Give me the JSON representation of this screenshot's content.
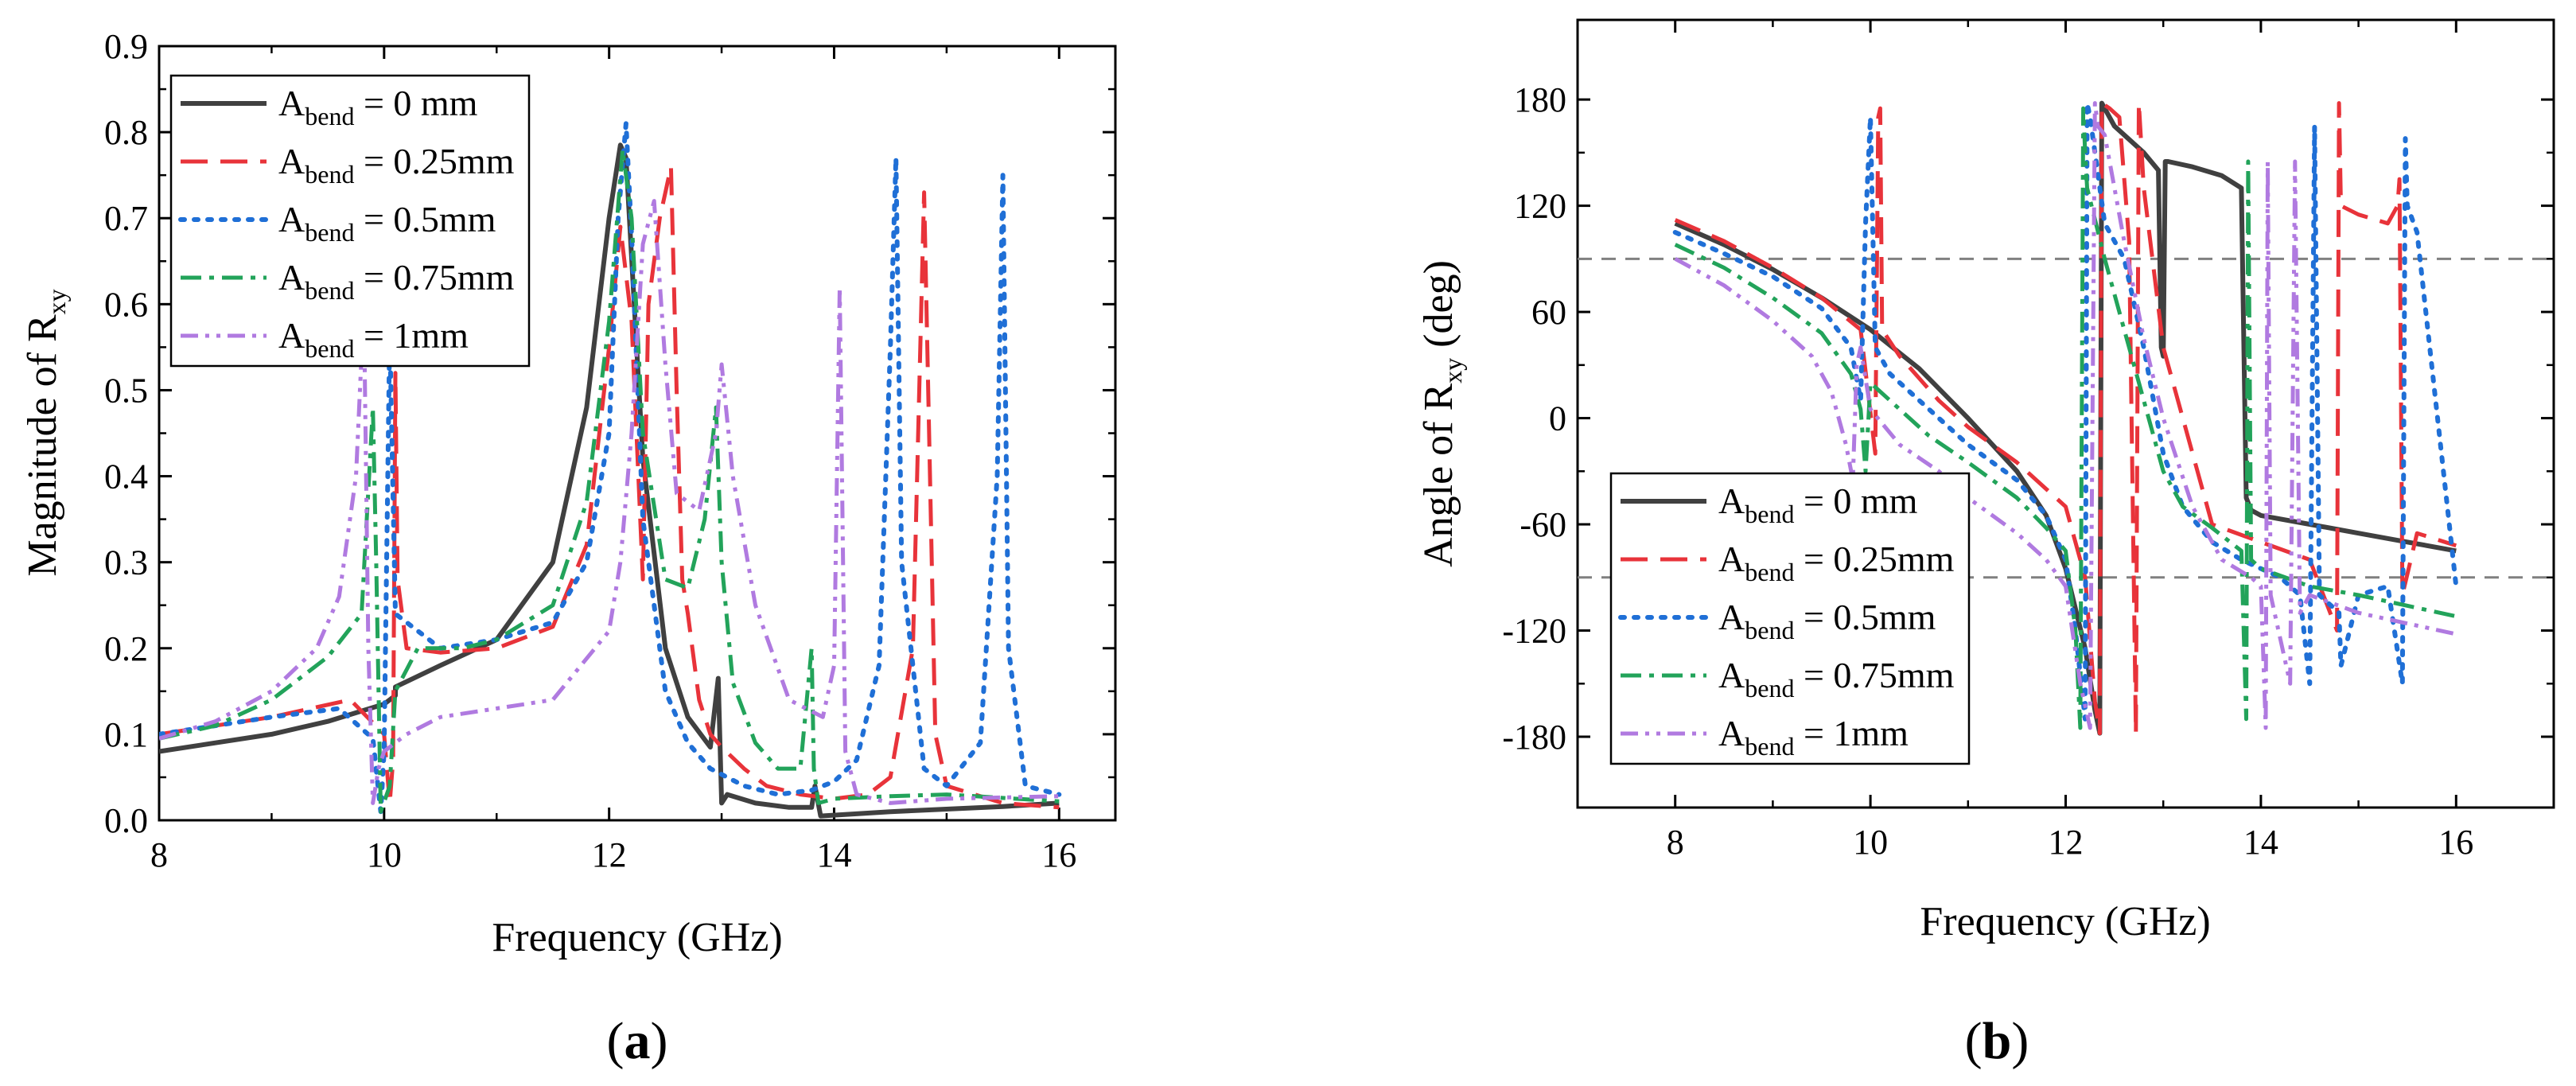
{
  "colors": {
    "abend_0": "#404040",
    "abend_025": "#e8333a",
    "abend_05": "#1f6fd6",
    "abend_075": "#22a35a",
    "abend_1": "#b07ae0",
    "reference_line": "#808080"
  },
  "legend_labels": [
    {
      "main": "A",
      "sub": "bend",
      "rest": " = 0 mm"
    },
    {
      "main": "A",
      "sub": "bend",
      "rest": " = 0.25mm"
    },
    {
      "main": "A",
      "sub": "bend",
      "rest": " = 0.5mm"
    },
    {
      "main": "A",
      "sub": "bend",
      "rest": " = 0.75mm"
    },
    {
      "main": "A",
      "sub": "bend",
      "rest": " = 1mm"
    }
  ],
  "panel_labels": [
    {
      "open": "(",
      "letter": "a",
      "close": ")"
    },
    {
      "open": "(",
      "letter": "b",
      "close": ")"
    }
  ],
  "chart_data": [
    {
      "type": "line",
      "xlabel": "Frequency (GHz)",
      "ylabel": {
        "main": "Magnitude of R",
        "sub": "xy"
      },
      "xlim": [
        8,
        16.5
      ],
      "ylim": [
        0,
        0.9
      ],
      "xticks": [
        "8",
        "10",
        "12",
        "14",
        "16"
      ],
      "yticks": [
        "0.0",
        "0.1",
        "0.2",
        "0.3",
        "0.4",
        "0.5",
        "0.6",
        "0.7",
        "0.8",
        "0.9"
      ],
      "legend_position": "top-left",
      "series": [
        {
          "name": "A_bend = 0 mm",
          "color_key": "abend_0",
          "dash": "solid",
          "x": [
            8.0,
            8.5,
            9.0,
            9.5,
            10.0,
            10.1,
            10.1,
            10.5,
            11.0,
            11.5,
            11.8,
            12.0,
            12.1,
            12.15,
            12.3,
            12.5,
            12.7,
            12.9,
            12.97,
            13.0,
            13.05,
            13.3,
            13.6,
            13.8,
            13.83,
            13.88,
            14.5,
            15.5,
            16.0
          ],
          "y": [
            0.08,
            0.09,
            0.1,
            0.115,
            0.135,
            0.145,
            0.155,
            0.18,
            0.21,
            0.3,
            0.48,
            0.7,
            0.785,
            0.77,
            0.42,
            0.2,
            0.12,
            0.085,
            0.165,
            0.02,
            0.03,
            0.02,
            0.015,
            0.015,
            0.04,
            0.005,
            0.01,
            0.016,
            0.02
          ]
        },
        {
          "name": "A_bend = 0.25mm",
          "color_key": "abend_025",
          "dash": "long-dash",
          "x": [
            8.0,
            9.0,
            9.7,
            10.0,
            10.05,
            10.08,
            10.1,
            10.12,
            10.2,
            10.5,
            11.0,
            11.5,
            11.8,
            12.0,
            12.1,
            12.2,
            12.3,
            12.35,
            12.45,
            12.5,
            12.55,
            12.6,
            12.65,
            12.7,
            12.8,
            12.9,
            13.0,
            13.2,
            13.4,
            13.7,
            14.0,
            14.3,
            14.5,
            14.7,
            14.8,
            14.9,
            15.0,
            15.5,
            16.0
          ],
          "y": [
            0.1,
            0.12,
            0.14,
            0.1,
            0.02,
            0.07,
            0.52,
            0.28,
            0.2,
            0.195,
            0.2,
            0.225,
            0.32,
            0.55,
            0.69,
            0.58,
            0.28,
            0.6,
            0.7,
            0.73,
            0.76,
            0.5,
            0.28,
            0.24,
            0.14,
            0.1,
            0.085,
            0.06,
            0.04,
            0.03,
            0.025,
            0.03,
            0.05,
            0.2,
            0.73,
            0.1,
            0.04,
            0.02,
            0.015
          ]
        },
        {
          "name": "A_bend = 0.5mm",
          "color_key": "abend_05",
          "dash": "dot",
          "x": [
            8.0,
            9.0,
            9.6,
            9.9,
            9.97,
            10.0,
            10.05,
            10.1,
            10.5,
            11.0,
            11.5,
            11.8,
            12.0,
            12.08,
            12.15,
            12.2,
            12.3,
            12.5,
            12.7,
            12.9,
            13.2,
            13.5,
            13.8,
            14.0,
            14.2,
            14.4,
            14.5,
            14.55,
            14.6,
            14.8,
            15.0,
            15.3,
            15.45,
            15.5,
            15.55,
            15.7,
            16.0
          ],
          "y": [
            0.1,
            0.12,
            0.13,
            0.095,
            0.01,
            0.08,
            0.57,
            0.24,
            0.2,
            0.21,
            0.23,
            0.3,
            0.45,
            0.7,
            0.81,
            0.68,
            0.35,
            0.15,
            0.09,
            0.06,
            0.04,
            0.03,
            0.035,
            0.045,
            0.07,
            0.18,
            0.55,
            0.77,
            0.3,
            0.06,
            0.04,
            0.09,
            0.4,
            0.75,
            0.2,
            0.04,
            0.03
          ]
        },
        {
          "name": "A_bend = 0.75mm",
          "color_key": "abend_075",
          "dash": "dash-dot",
          "x": [
            8.0,
            8.5,
            9.0,
            9.5,
            9.8,
            9.9,
            9.93,
            9.97,
            10.05,
            10.1,
            10.3,
            10.7,
            11.0,
            11.5,
            11.8,
            12.0,
            12.12,
            12.2,
            12.3,
            12.5,
            12.7,
            12.85,
            12.95,
            13.0,
            13.1,
            13.3,
            13.5,
            13.7,
            13.8,
            13.82,
            13.86,
            14.0,
            14.5,
            15.0,
            16.0
          ],
          "y": [
            0.095,
            0.11,
            0.14,
            0.19,
            0.24,
            0.48,
            0.3,
            0.01,
            0.04,
            0.15,
            0.2,
            0.2,
            0.21,
            0.25,
            0.37,
            0.58,
            0.78,
            0.7,
            0.45,
            0.28,
            0.27,
            0.35,
            0.48,
            0.3,
            0.16,
            0.09,
            0.06,
            0.06,
            0.2,
            0.06,
            0.02,
            0.025,
            0.028,
            0.03,
            0.022
          ]
        },
        {
          "name": "A_bend = 1mm",
          "color_key": "abend_1",
          "dash": "dash-dot-dot",
          "x": [
            8.0,
            8.5,
            9.0,
            9.4,
            9.6,
            9.75,
            9.82,
            9.86,
            9.9,
            9.95,
            10.0,
            10.2,
            10.5,
            11.0,
            11.5,
            12.0,
            12.1,
            12.2,
            12.3,
            12.4,
            12.5,
            12.6,
            12.8,
            12.95,
            13.0,
            13.1,
            13.3,
            13.6,
            13.9,
            14.0,
            14.05,
            14.1,
            14.2,
            14.5,
            15.0,
            16.0
          ],
          "y": [
            0.095,
            0.115,
            0.15,
            0.2,
            0.26,
            0.4,
            0.6,
            0.2,
            0.02,
            0.06,
            0.08,
            0.1,
            0.12,
            0.13,
            0.14,
            0.22,
            0.3,
            0.45,
            0.67,
            0.72,
            0.53,
            0.38,
            0.36,
            0.45,
            0.53,
            0.4,
            0.25,
            0.14,
            0.12,
            0.18,
            0.62,
            0.08,
            0.03,
            0.02,
            0.025,
            0.028
          ]
        }
      ]
    },
    {
      "type": "line",
      "xlabel": "Frequency (GHz)",
      "ylabel": {
        "main": "Angle of R",
        "sub": "xy",
        "rest": " (deg)"
      },
      "xlim": [
        7,
        17
      ],
      "ylim": [
        -220,
        225
      ],
      "xticks": [
        "8",
        "10",
        "12",
        "14",
        "16"
      ],
      "yticks": [
        "180",
        "120",
        "60",
        "0",
        "-60",
        "-120",
        "-180"
      ],
      "reference_lines": [
        90,
        -90
      ],
      "legend_position": "bottom-left",
      "series": [
        {
          "name": "A_bend = 0 mm",
          "color_key": "abend_0",
          "dash": "solid",
          "x": [
            8.0,
            8.5,
            9.0,
            9.5,
            10.0,
            10.5,
            11.0,
            11.5,
            11.8,
            12.0,
            12.2,
            12.3,
            12.35,
            12.37,
            12.5,
            12.8,
            12.95,
            12.98,
            13.0,
            13.02,
            13.05,
            13.3,
            13.6,
            13.8,
            13.85,
            13.9,
            14.0,
            14.5,
            15.0,
            15.5,
            16.0
          ],
          "y": [
            110,
            98,
            84,
            68,
            50,
            28,
            0,
            -30,
            -55,
            -85,
            -130,
            -165,
            -178,
            178,
            165,
            150,
            140,
            40,
            35,
            145,
            145,
            142,
            137,
            130,
            -45,
            -52,
            -55,
            -60,
            -65,
            -70,
            -75
          ]
        },
        {
          "name": "A_bend = 0.25mm",
          "color_key": "abend_025",
          "dash": "long-dash",
          "x": [
            8.0,
            8.5,
            9.0,
            9.5,
            9.9,
            10.05,
            10.08,
            10.1,
            10.12,
            10.3,
            10.7,
            11.0,
            11.5,
            11.8,
            12.0,
            12.2,
            12.3,
            12.35,
            12.37,
            12.45,
            12.55,
            12.65,
            12.7,
            12.72,
            12.75,
            12.8,
            13.0,
            13.5,
            14.0,
            14.5,
            14.78,
            14.8,
            14.82,
            15.0,
            15.3,
            15.4,
            15.42,
            15.45,
            15.6,
            16.0
          ],
          "y": [
            112,
            100,
            85,
            68,
            50,
            -20,
            170,
            175,
            50,
            35,
            10,
            -5,
            -25,
            -40,
            -50,
            -90,
            -160,
            -178,
            178,
            175,
            170,
            100,
            -100,
            -178,
            178,
            130,
            40,
            -60,
            -70,
            -80,
            -120,
            178,
            120,
            115,
            110,
            120,
            135,
            -100,
            -65,
            -72
          ]
        },
        {
          "name": "A_bend = 0.5mm",
          "color_key": "abend_05",
          "dash": "dot",
          "x": [
            8.0,
            8.5,
            9.0,
            9.5,
            9.8,
            9.9,
            9.95,
            10.0,
            10.05,
            10.2,
            10.6,
            11.0,
            11.5,
            11.8,
            12.0,
            12.1,
            12.2,
            12.22,
            12.25,
            12.4,
            12.6,
            12.8,
            13.0,
            13.2,
            13.5,
            13.8,
            14.0,
            14.2,
            14.4,
            14.5,
            14.55,
            14.6,
            14.8,
            14.82,
            15.0,
            15.3,
            15.45,
            15.48,
            15.5,
            15.6,
            16.0
          ],
          "y": [
            105,
            93,
            80,
            62,
            40,
            10,
            110,
            170,
            40,
            25,
            5,
            -15,
            -35,
            -55,
            -80,
            -120,
            -170,
            178,
            170,
            110,
            90,
            40,
            -20,
            -50,
            -70,
            -80,
            -85,
            -90,
            -100,
            -150,
            165,
            -100,
            -110,
            -140,
            -100,
            -95,
            -150,
            158,
            120,
            105,
            -95
          ]
        },
        {
          "name": "A_bend = 0.75mm",
          "color_key": "abend_075",
          "dash": "dash-dot",
          "x": [
            8.0,
            8.5,
            9.0,
            9.5,
            9.8,
            9.9,
            9.95,
            10.0,
            10.2,
            10.6,
            11.0,
            11.5,
            11.8,
            12.0,
            12.1,
            12.15,
            12.18,
            12.2,
            12.22,
            12.4,
            12.6,
            12.8,
            13.0,
            13.2,
            13.5,
            13.8,
            13.85,
            13.87,
            13.9,
            14.0,
            14.5,
            15.0,
            16.0
          ],
          "y": [
            98,
            85,
            68,
            48,
            25,
            5,
            -30,
            20,
            10,
            -10,
            -25,
            -45,
            -62,
            -75,
            -120,
            -175,
            175,
            150,
            130,
            90,
            50,
            10,
            -30,
            -50,
            -62,
            -75,
            -170,
            145,
            -80,
            -85,
            -95,
            -100,
            -112
          ]
        },
        {
          "name": "A_bend = 1mm",
          "color_key": "abend_1",
          "dash": "dash-dot-dot",
          "x": [
            8.0,
            8.5,
            9.0,
            9.4,
            9.6,
            9.75,
            9.82,
            9.86,
            9.9,
            10.0,
            10.3,
            10.7,
            11.0,
            11.5,
            11.8,
            12.0,
            12.15,
            12.25,
            12.3,
            12.33,
            12.4,
            12.6,
            12.8,
            13.0,
            13.3,
            13.6,
            13.9,
            14.0,
            14.05,
            14.07,
            14.1,
            14.3,
            14.35,
            14.4,
            14.5,
            15.0,
            16.0
          ],
          "y": [
            90,
            75,
            55,
            35,
            15,
            -15,
            -35,
            30,
            40,
            5,
            -15,
            -30,
            -45,
            -65,
            -80,
            -95,
            -150,
            -175,
            178,
            165,
            160,
            100,
            45,
            0,
            -50,
            -80,
            -90,
            -95,
            -175,
            145,
            -100,
            -150,
            145,
            -110,
            -100,
            -110,
            -122
          ]
        }
      ]
    }
  ]
}
